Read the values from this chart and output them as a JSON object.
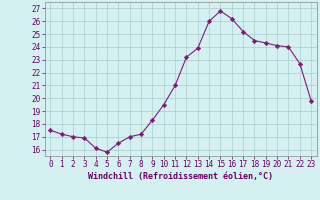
{
  "x": [
    0,
    1,
    2,
    3,
    4,
    5,
    6,
    7,
    8,
    9,
    10,
    11,
    12,
    13,
    14,
    15,
    16,
    17,
    18,
    19,
    20,
    21,
    22,
    23
  ],
  "y": [
    17.5,
    17.2,
    17.0,
    16.9,
    16.1,
    15.8,
    16.5,
    17.0,
    17.2,
    18.3,
    19.5,
    21.0,
    23.2,
    23.9,
    26.0,
    26.8,
    26.2,
    25.2,
    24.5,
    24.3,
    24.1,
    24.0,
    22.7,
    19.8
  ],
  "line_color": "#7B1E7B",
  "marker": "D",
  "marker_size": 2.2,
  "background_color": "#d5f0f0",
  "grid_color": "#aacccc",
  "xlabel": "Windchill (Refroidissement éolien,°C)",
  "xlim": [
    -0.5,
    23.5
  ],
  "ylim": [
    15.5,
    27.5
  ],
  "yticks": [
    16,
    17,
    18,
    19,
    20,
    21,
    22,
    23,
    24,
    25,
    26,
    27
  ],
  "xticks": [
    0,
    1,
    2,
    3,
    4,
    5,
    6,
    7,
    8,
    9,
    10,
    11,
    12,
    13,
    14,
    15,
    16,
    17,
    18,
    19,
    20,
    21,
    22,
    23
  ],
  "tick_label_fontsize": 5.5,
  "xlabel_fontsize": 6.0
}
